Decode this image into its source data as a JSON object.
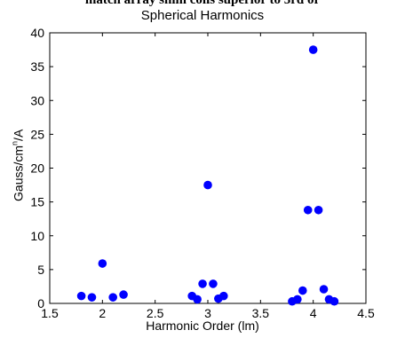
{
  "chart_data": {
    "type": "scatter",
    "title_cropped": "match array shim coils superior to 3rd or",
    "title": "Spherical Harmonics",
    "xlabel": "Harmonic Order (lm)",
    "ylabel_base": "Gauss/cm",
    "ylabel_sup": "n",
    "ylabel_tail": "/A",
    "xlim": [
      1.5,
      4.5
    ],
    "ylim": [
      0,
      40
    ],
    "xticks": [
      1.5,
      2,
      2.5,
      3,
      3.5,
      4,
      4.5
    ],
    "yticks": [
      0,
      5,
      10,
      15,
      20,
      25,
      30,
      35,
      40
    ],
    "grid": false,
    "marker_color": "#0000ff",
    "points": [
      {
        "x": 1.8,
        "y": 1.1
      },
      {
        "x": 1.9,
        "y": 0.9
      },
      {
        "x": 2.0,
        "y": 5.9
      },
      {
        "x": 2.1,
        "y": 0.9
      },
      {
        "x": 2.2,
        "y": 1.3
      },
      {
        "x": 2.85,
        "y": 1.1
      },
      {
        "x": 2.9,
        "y": 0.6
      },
      {
        "x": 2.95,
        "y": 2.9
      },
      {
        "x": 3.0,
        "y": 17.5
      },
      {
        "x": 3.05,
        "y": 2.9
      },
      {
        "x": 3.1,
        "y": 0.7
      },
      {
        "x": 3.15,
        "y": 1.1
      },
      {
        "x": 3.8,
        "y": 0.3
      },
      {
        "x": 3.85,
        "y": 0.6
      },
      {
        "x": 3.9,
        "y": 1.9
      },
      {
        "x": 3.95,
        "y": 13.8
      },
      {
        "x": 4.0,
        "y": 37.5
      },
      {
        "x": 4.05,
        "y": 13.8
      },
      {
        "x": 4.1,
        "y": 2.1
      },
      {
        "x": 4.15,
        "y": 0.6
      },
      {
        "x": 4.2,
        "y": 0.3
      }
    ]
  }
}
